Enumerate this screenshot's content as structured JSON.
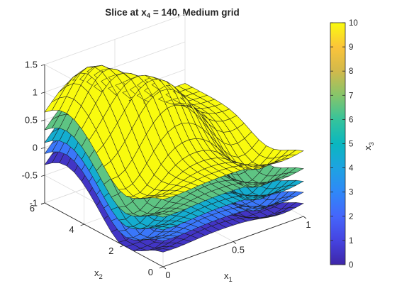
{
  "chart_data": {
    "type": "surface3d",
    "title": {
      "main": "Slice  at  x",
      "sub": "4",
      "rest": "  =  140,  Medium  grid"
    },
    "xlabel": {
      "main": "x",
      "sub": "1"
    },
    "ylabel": {
      "main": "x",
      "sub": "2"
    },
    "colorbar_label": {
      "main": "x",
      "sub": "3"
    },
    "xlim": [
      0,
      1
    ],
    "ylim": [
      0,
      6
    ],
    "zlim": [
      -1,
      1.5
    ],
    "clim": [
      0,
      10
    ],
    "x_ticks": [
      "0",
      "0.5",
      "1"
    ],
    "y_ticks": [
      "0",
      "2",
      "4",
      "6"
    ],
    "z_ticks": [
      "-1",
      "-0.5",
      "0",
      "0.5",
      "1",
      "1.5"
    ],
    "colorbar_ticks": [
      "0",
      "1",
      "2",
      "3",
      "4",
      "5",
      "6",
      "7",
      "8",
      "9",
      "10"
    ],
    "grid": true,
    "colormap": "parula",
    "layers": [
      {
        "x3": 0.5,
        "offset": -0.95
      },
      {
        "x3": 2.5,
        "offset": -0.75
      },
      {
        "x3": 4.5,
        "offset": -0.55
      },
      {
        "x3": 6.5,
        "offset": -0.32
      },
      {
        "x3": 10,
        "offset": 0
      }
    ],
    "mesh_x_samples": 20,
    "mesh_y_samples": 16,
    "surface_z_range_at_x3_10": [
      -0.1,
      1.4
    ]
  }
}
